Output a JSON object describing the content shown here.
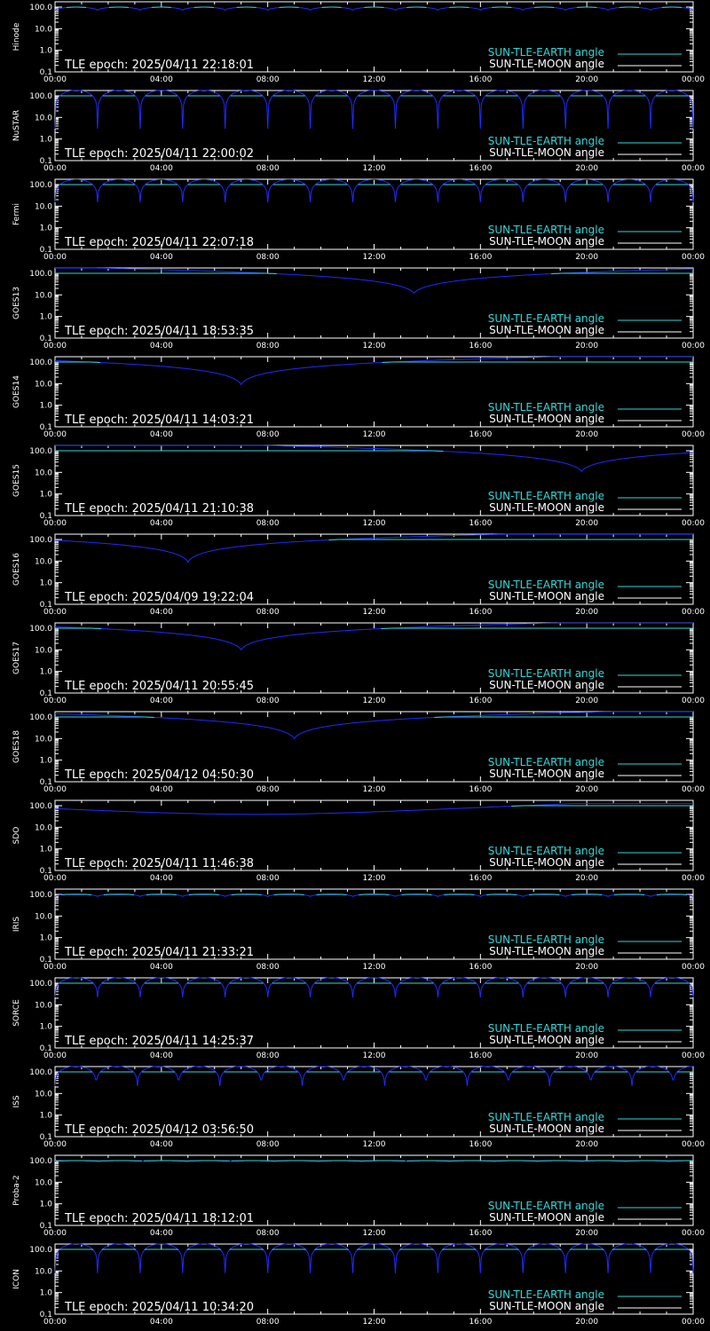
{
  "colors": {
    "background": "#000000",
    "axes": "#ffffff",
    "earth_line": "#2fd9d9",
    "moon_line": "#ffffff",
    "angle_curve": "#1f2bff",
    "angle_curve_highlight": "#2fd9d9"
  },
  "legend": {
    "earth_label": "SUN-TLE-EARTH angle",
    "moon_label": "SUN-TLE-MOON angle"
  },
  "chart_data": [
    {
      "type": "line",
      "ylabel": "Hinode",
      "epoch_text": "TLE epoch: 2025/04/11 22:18:01",
      "x_ticks": [
        "00:00",
        "04:00",
        "08:00",
        "12:00",
        "16:00",
        "20:00",
        "00:00"
      ],
      "y_ticks": [
        "0.1",
        "1.0",
        "10.0",
        "100.0"
      ],
      "ylim": [
        0.1,
        100
      ],
      "y_scale": "log",
      "curve": {
        "kind": "periodic",
        "period_hours": 1.6,
        "min": 72,
        "max": 100
      }
    },
    {
      "type": "line",
      "ylabel": "NuSTAR",
      "epoch_text": "TLE epoch: 2025/04/11 22:00:02",
      "x_ticks": [
        "00:00",
        "04:00",
        "08:00",
        "12:00",
        "16:00",
        "20:00",
        "00:00"
      ],
      "y_ticks": [
        "0.1",
        "1.0",
        "10.0",
        "100.0"
      ],
      "ylim": [
        0.1,
        100
      ],
      "y_scale": "log",
      "curve": {
        "kind": "periodic",
        "period_hours": 1.6,
        "min": 3,
        "max": 180
      }
    },
    {
      "type": "line",
      "ylabel": "Fermi",
      "epoch_text": "TLE epoch: 2025/04/11 22:07:18",
      "x_ticks": [
        "00:00",
        "04:00",
        "08:00",
        "12:00",
        "16:00",
        "20:00",
        "00:00"
      ],
      "y_ticks": [
        "0.1",
        "1.0",
        "10.0",
        "100.0"
      ],
      "ylim": [
        0.1,
        100
      ],
      "y_scale": "log",
      "curve": {
        "kind": "periodic",
        "period_hours": 1.6,
        "min": 15,
        "max": 170
      }
    },
    {
      "type": "line",
      "ylabel": "GOES13",
      "epoch_text": "TLE epoch: 2025/04/11 18:53:35",
      "x_ticks": [
        "00:00",
        "04:00",
        "08:00",
        "12:00",
        "16:00",
        "20:00",
        "00:00"
      ],
      "y_ticks": [
        "0.1",
        "1.0",
        "10.0",
        "100.0"
      ],
      "ylim": [
        0.1,
        100
      ],
      "y_scale": "log",
      "curve": {
        "kind": "vshape",
        "center_hours": 13.5,
        "min": 12,
        "max": 175
      }
    },
    {
      "type": "line",
      "ylabel": "GOES14",
      "epoch_text": "TLE epoch: 2025/04/11 14:03:21",
      "x_ticks": [
        "00:00",
        "04:00",
        "08:00",
        "12:00",
        "16:00",
        "20:00",
        "00:00"
      ],
      "y_ticks": [
        "0.1",
        "1.0",
        "10.0",
        "100.0"
      ],
      "ylim": [
        0.1,
        100
      ],
      "y_scale": "log",
      "curve": {
        "kind": "vshape",
        "center_hours": 7.0,
        "min": 9,
        "max": 175
      }
    },
    {
      "type": "line",
      "ylabel": "GOES15",
      "epoch_text": "TLE epoch: 2025/04/11 21:10:38",
      "x_ticks": [
        "00:00",
        "04:00",
        "08:00",
        "12:00",
        "16:00",
        "20:00",
        "00:00"
      ],
      "y_ticks": [
        "0.1",
        "1.0",
        "10.0",
        "100.0"
      ],
      "ylim": [
        0.1,
        100
      ],
      "y_scale": "log",
      "curve": {
        "kind": "vshape",
        "center_hours": 19.8,
        "min": 11,
        "max": 175
      }
    },
    {
      "type": "line",
      "ylabel": "GOES16",
      "epoch_text": "TLE epoch: 2025/04/09 19:22:04",
      "x_ticks": [
        "00:00",
        "04:00",
        "08:00",
        "12:00",
        "16:00",
        "20:00",
        "00:00"
      ],
      "y_ticks": [
        "0.1",
        "1.0",
        "10.0",
        "100.0"
      ],
      "ylim": [
        0.1,
        100
      ],
      "y_scale": "log",
      "curve": {
        "kind": "vshape",
        "center_hours": 5.0,
        "min": 9,
        "max": 175
      }
    },
    {
      "type": "line",
      "ylabel": "GOES17",
      "epoch_text": "TLE epoch: 2025/04/11 20:55:45",
      "x_ticks": [
        "00:00",
        "04:00",
        "08:00",
        "12:00",
        "16:00",
        "20:00",
        "00:00"
      ],
      "y_ticks": [
        "0.1",
        "1.0",
        "10.0",
        "100.0"
      ],
      "ylim": [
        0.1,
        100
      ],
      "y_scale": "log",
      "curve": {
        "kind": "vshape",
        "center_hours": 7.0,
        "min": 10,
        "max": 175
      }
    },
    {
      "type": "line",
      "ylabel": "GOES18",
      "epoch_text": "TLE epoch: 2025/04/12 04:50:30",
      "x_ticks": [
        "00:00",
        "04:00",
        "08:00",
        "12:00",
        "16:00",
        "20:00",
        "00:00"
      ],
      "y_ticks": [
        "0.1",
        "1.0",
        "10.0",
        "100.0"
      ],
      "ylim": [
        0.1,
        100
      ],
      "y_scale": "log",
      "curve": {
        "kind": "vshape",
        "center_hours": 9.0,
        "min": 10,
        "max": 175
      }
    },
    {
      "type": "line",
      "ylabel": "SDO",
      "epoch_text": "TLE epoch: 2025/04/11 11:46:38",
      "x_ticks": [
        "00:00",
        "04:00",
        "08:00",
        "12:00",
        "16:00",
        "20:00",
        "00:00"
      ],
      "y_ticks": [
        "0.1",
        "1.0",
        "10.0",
        "100.0"
      ],
      "ylim": [
        0.1,
        100
      ],
      "y_scale": "log",
      "curve": {
        "kind": "smooth",
        "center_hours": 7.5,
        "min": 40,
        "max": 125
      }
    },
    {
      "type": "line",
      "ylabel": "IRIS",
      "epoch_text": "TLE epoch: 2025/04/11 21:33:21",
      "x_ticks": [
        "00:00",
        "04:00",
        "08:00",
        "12:00",
        "16:00",
        "20:00",
        "00:00"
      ],
      "y_ticks": [
        "0.1",
        "1.0",
        "10.0",
        "100.0"
      ],
      "ylim": [
        0.1,
        100
      ],
      "y_scale": "log",
      "curve": {
        "kind": "periodic",
        "period_hours": 1.6,
        "min": 80,
        "max": 105
      }
    },
    {
      "type": "line",
      "ylabel": "SORCE",
      "epoch_text": "TLE epoch: 2025/04/11 14:25:37",
      "x_ticks": [
        "00:00",
        "04:00",
        "08:00",
        "12:00",
        "16:00",
        "20:00",
        "00:00"
      ],
      "y_ticks": [
        "0.1",
        "1.0",
        "10.0",
        "100.0"
      ],
      "ylim": [
        0.1,
        100
      ],
      "y_scale": "log",
      "curve": {
        "kind": "periodic",
        "period_hours": 1.6,
        "min": 22,
        "max": 180
      }
    },
    {
      "type": "line",
      "ylabel": "ISS",
      "epoch_text": "TLE epoch: 2025/04/12 03:56:50",
      "x_ticks": [
        "00:00",
        "04:00",
        "08:00",
        "12:00",
        "16:00",
        "20:00",
        "00:00"
      ],
      "y_ticks": [
        "0.1",
        "1.0",
        "10.0",
        "100.0"
      ],
      "ylim": [
        0.1,
        100
      ],
      "y_scale": "log",
      "curve": {
        "kind": "periodic",
        "period_hours": 1.55,
        "min": 22,
        "max": 180
      }
    },
    {
      "type": "line",
      "ylabel": "Proba-2",
      "epoch_text": "TLE epoch: 2025/04/11 18:12:01",
      "x_ticks": [
        "00:00",
        "04:00",
        "08:00",
        "12:00",
        "16:00",
        "20:00",
        "00:00"
      ],
      "y_ticks": [
        "0.1",
        "1.0",
        "10.0",
        "100.0"
      ],
      "ylim": [
        0.1,
        100
      ],
      "y_scale": "log",
      "curve": {
        "kind": "periodic",
        "period_hours": 1.65,
        "min": 95,
        "max": 100
      }
    },
    {
      "type": "line",
      "ylabel": "ICON",
      "epoch_text": "TLE epoch: 2025/04/11 10:34:20",
      "x_ticks": [
        "00:00",
        "04:00",
        "08:00",
        "12:00",
        "16:00",
        "20:00",
        "00:00"
      ],
      "y_ticks": [
        "0.1",
        "1.0",
        "10.0",
        "100.0"
      ],
      "ylim": [
        0.1,
        100
      ],
      "y_scale": "log",
      "curve": {
        "kind": "periodic",
        "period_hours": 1.6,
        "min": 8,
        "max": 180
      }
    }
  ]
}
